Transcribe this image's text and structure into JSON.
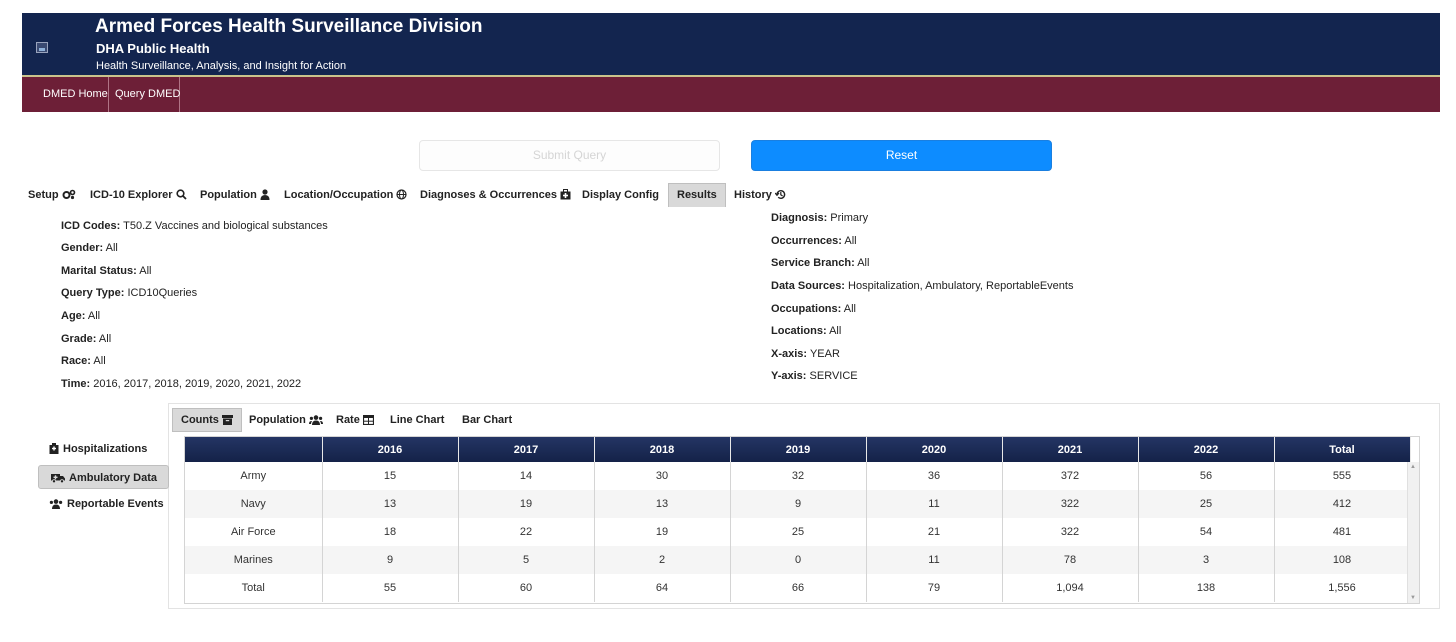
{
  "header": {
    "title": "Armed Forces Health Surveillance Division",
    "subtitle": "DHA Public Health",
    "tagline": "Health Surveillance, Analysis, and Insight for Action",
    "logo_icon": "broken-image-icon",
    "background": "#13254f"
  },
  "nav": {
    "items": [
      {
        "label": "DMED Home"
      },
      {
        "label": "Query DMED"
      }
    ],
    "background": "#6d1f37"
  },
  "actions": {
    "submit_label": "Submit Query",
    "submit_state": "disabled",
    "reset_label": "Reset",
    "reset_color": "#0d8cff"
  },
  "tabs": [
    {
      "label": "Setup",
      "icon": "gears-icon"
    },
    {
      "label": "ICD-10 Explorer",
      "icon": "search-icon"
    },
    {
      "label": "Population",
      "icon": "user-icon"
    },
    {
      "label": "Location/Occupation",
      "icon": "globe-icon"
    },
    {
      "label": "Diagnoses & Occurrences",
      "icon": "briefcase-medical-icon"
    },
    {
      "label": "Display Config",
      "icon": ""
    },
    {
      "label": "Results",
      "icon": "",
      "active": true
    },
    {
      "label": "History",
      "icon": "history-icon"
    }
  ],
  "summary": {
    "left": [
      {
        "label": "ICD Codes:",
        "value": "T50.Z Vaccines and biological substances"
      },
      {
        "label": "Gender:",
        "value": "All"
      },
      {
        "label": "Marital Status:",
        "value": "All"
      },
      {
        "label": "Query Type:",
        "value": "ICD10Queries"
      },
      {
        "label": "Age:",
        "value": "All"
      },
      {
        "label": "Grade:",
        "value": "All"
      },
      {
        "label": "Race:",
        "value": "All"
      },
      {
        "label": "Time:",
        "value": "2016, 2017, 2018, 2019, 2020, 2021, 2022"
      }
    ],
    "right": [
      {
        "label": "Diagnosis:",
        "value": "Primary"
      },
      {
        "label": "Occurrences:",
        "value": "All"
      },
      {
        "label": "Service Branch:",
        "value": "All"
      },
      {
        "label": "Data Sources:",
        "value": "Hospitalization, Ambulatory, ReportableEvents"
      },
      {
        "label": "Occupations:",
        "value": "All"
      },
      {
        "label": "Locations:",
        "value": "All"
      },
      {
        "label": "X-axis:",
        "value": "YEAR"
      },
      {
        "label": "Y-axis:",
        "value": "SERVICE"
      }
    ]
  },
  "result_tabs": [
    {
      "label": "Counts",
      "icon": "archive-icon",
      "active": true
    },
    {
      "label": "Population",
      "icon": "users-icon"
    },
    {
      "label": "Rate",
      "icon": "table-icon"
    },
    {
      "label": "Line Chart",
      "icon": ""
    },
    {
      "label": "Bar Chart",
      "icon": ""
    }
  ],
  "side_menu": [
    {
      "label": "Hospitalizations",
      "icon": "hospital-icon"
    },
    {
      "label": "Ambulatory Data",
      "icon": "ambulance-icon",
      "active": true
    },
    {
      "label": "Reportable Events",
      "icon": "users-icon"
    }
  ],
  "table": {
    "headers": [
      "",
      "2016",
      "2017",
      "2018",
      "2019",
      "2020",
      "2021",
      "2022",
      "Total"
    ],
    "rows": [
      [
        "Army",
        "15",
        "14",
        "30",
        "32",
        "36",
        "372",
        "56",
        "555"
      ],
      [
        "Navy",
        "13",
        "19",
        "13",
        "9",
        "11",
        "322",
        "25",
        "412"
      ],
      [
        "Air Force",
        "18",
        "22",
        "19",
        "25",
        "21",
        "322",
        "54",
        "481"
      ],
      [
        "Marines",
        "9",
        "5",
        "2",
        "0",
        "11",
        "78",
        "3",
        "108"
      ],
      [
        "Total",
        "55",
        "60",
        "64",
        "66",
        "79",
        "1,094",
        "138",
        "1,556"
      ]
    ],
    "header_color": "#1b2a58"
  }
}
